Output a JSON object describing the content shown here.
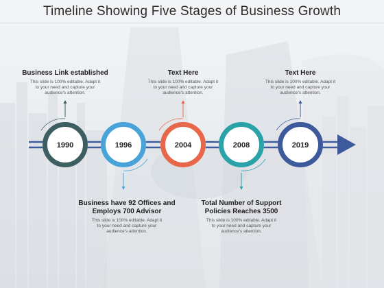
{
  "title": "Timeline Showing Five Stages of Business Growth",
  "stages": [
    {
      "year": "1990",
      "color": "#3e5f61"
    },
    {
      "year": "1996",
      "color": "#4aa3d8"
    },
    {
      "year": "2004",
      "color": "#e8674a"
    },
    {
      "year": "2008",
      "color": "#2aa2a8"
    },
    {
      "year": "2019",
      "color": "#3d5a9a"
    }
  ],
  "arrow_color": "#3d5a9a",
  "callouts": [
    {
      "title": "Business Link established",
      "desc": [
        "This slide is 100% editable. Adapt it",
        "to your need and capture your",
        "audience's attention."
      ]
    },
    {
      "title": "Business have 92 Offices and\nEmploys 700 Advisor",
      "desc": [
        "This slide is 100% editable. Adapt it",
        "to your need and capture your",
        "audience's attention."
      ]
    },
    {
      "title": "Text Here",
      "desc": [
        "This slide is 100% editable. Adapt it",
        "to your need and capture your",
        "audience's attention."
      ]
    },
    {
      "title": "Total Number of Support\nPolicies Reaches 3500",
      "desc": [
        "This slide is 100% editable. Adapt it",
        "to your need and capture your",
        "audience's attention."
      ]
    },
    {
      "title": "Text Here",
      "desc": [
        "This slide is 100% editable. Adapt it",
        "to your need and capture your",
        "audience's attention."
      ]
    }
  ]
}
